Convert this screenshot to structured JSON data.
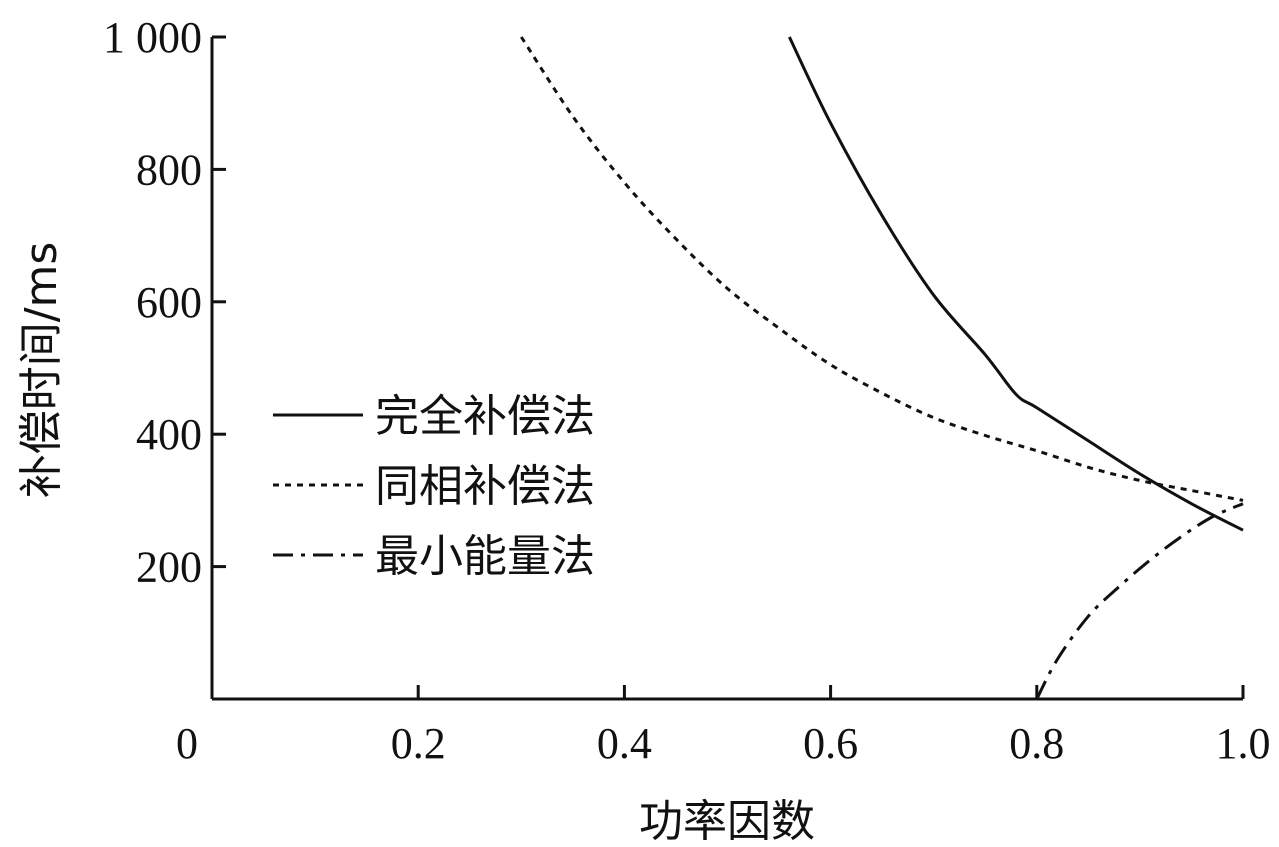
{
  "chart_data": {
    "type": "line",
    "title": "",
    "xlabel": "功率因数",
    "ylabel": "补偿时间/ms",
    "xlim": [
      0,
      1.0
    ],
    "ylim": [
      0,
      1000
    ],
    "x_ticks": [
      0,
      0.2,
      0.4,
      0.6,
      0.8,
      1.0
    ],
    "x_tick_labels": [
      "0",
      "0.2",
      "0.4",
      "0.6",
      "0.8",
      "1.0"
    ],
    "y_ticks": [
      200,
      400,
      600,
      800,
      1000
    ],
    "y_tick_labels": [
      "200",
      "400",
      "600",
      "800",
      "1 000"
    ],
    "legend_position": "center-left",
    "grid": false,
    "series": [
      {
        "name": "完全补偿法",
        "style": "solid",
        "x": [
          0.56,
          0.6,
          0.65,
          0.7,
          0.75,
          0.78,
          0.8,
          0.85,
          0.9,
          0.95,
          1.0
        ],
        "y": [
          1000,
          870,
          730,
          610,
          520,
          460,
          440,
          390,
          340,
          295,
          255
        ]
      },
      {
        "name": "同相补偿法",
        "style": "dotted",
        "x": [
          0.3,
          0.35,
          0.4,
          0.45,
          0.5,
          0.55,
          0.6,
          0.65,
          0.7,
          0.75,
          0.8,
          0.85,
          0.9,
          0.95,
          1.0
        ],
        "y": [
          1000,
          880,
          780,
          695,
          620,
          560,
          505,
          462,
          425,
          398,
          375,
          350,
          330,
          315,
          300
        ]
      },
      {
        "name": "最小能量法",
        "style": "dashdot",
        "x": [
          0.8,
          0.82,
          0.85,
          0.88,
          0.91,
          0.94,
          0.97,
          1.0
        ],
        "y": [
          0,
          60,
          125,
          170,
          210,
          245,
          275,
          295
        ]
      }
    ]
  }
}
